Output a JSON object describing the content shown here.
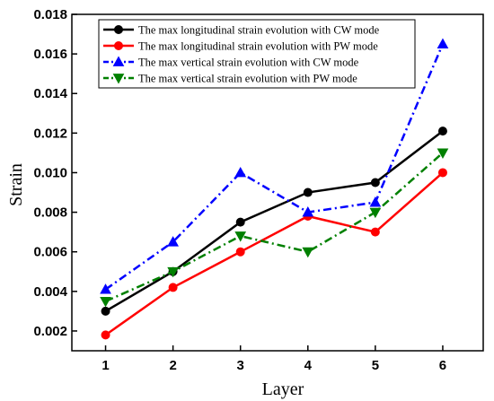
{
  "chart_data": {
    "type": "line",
    "xlabel": "Layer",
    "ylabel": "Strain",
    "x": [
      1,
      2,
      3,
      4,
      5,
      6
    ],
    "xlim": [
      0.5,
      6.6
    ],
    "ylim": [
      0.001,
      0.018
    ],
    "yticks": [
      0.002,
      0.004,
      0.006,
      0.008,
      0.01,
      0.012,
      0.014,
      0.016,
      0.018
    ],
    "ytick_labels": [
      "0.002",
      "0.004",
      "0.006",
      "0.008",
      "0.010",
      "0.012",
      "0.014",
      "0.016",
      "0.018"
    ],
    "xtick_labels": [
      "1",
      "2",
      "3",
      "4",
      "5",
      "6"
    ],
    "grid": false,
    "legend_position": "top-left",
    "series": [
      {
        "name": "The max longitudinal strain evolution with CW mode",
        "values": [
          0.003,
          0.005,
          0.0075,
          0.009,
          0.0095,
          0.0121
        ],
        "color": "#000000",
        "marker": "circle",
        "line_style": "solid"
      },
      {
        "name": "The max longitudinal strain evolution with PW mode",
        "values": [
          0.0018,
          0.0042,
          0.006,
          0.0078,
          0.007,
          0.01
        ],
        "color": "#ff0000",
        "marker": "circle",
        "line_style": "solid"
      },
      {
        "name": "The max vertical strain evolution with CW mode",
        "values": [
          0.0041,
          0.0065,
          0.01,
          0.008,
          0.0085,
          0.0165
        ],
        "color": "#0000ff",
        "marker": "triangle-up",
        "line_style": "dash-dot"
      },
      {
        "name": "The max vertical strain evolution with PW mode",
        "values": [
          0.0035,
          0.005,
          0.0068,
          0.006,
          0.008,
          0.011
        ],
        "color": "#008000",
        "marker": "triangle-down",
        "line_style": "dash-dot"
      }
    ]
  }
}
